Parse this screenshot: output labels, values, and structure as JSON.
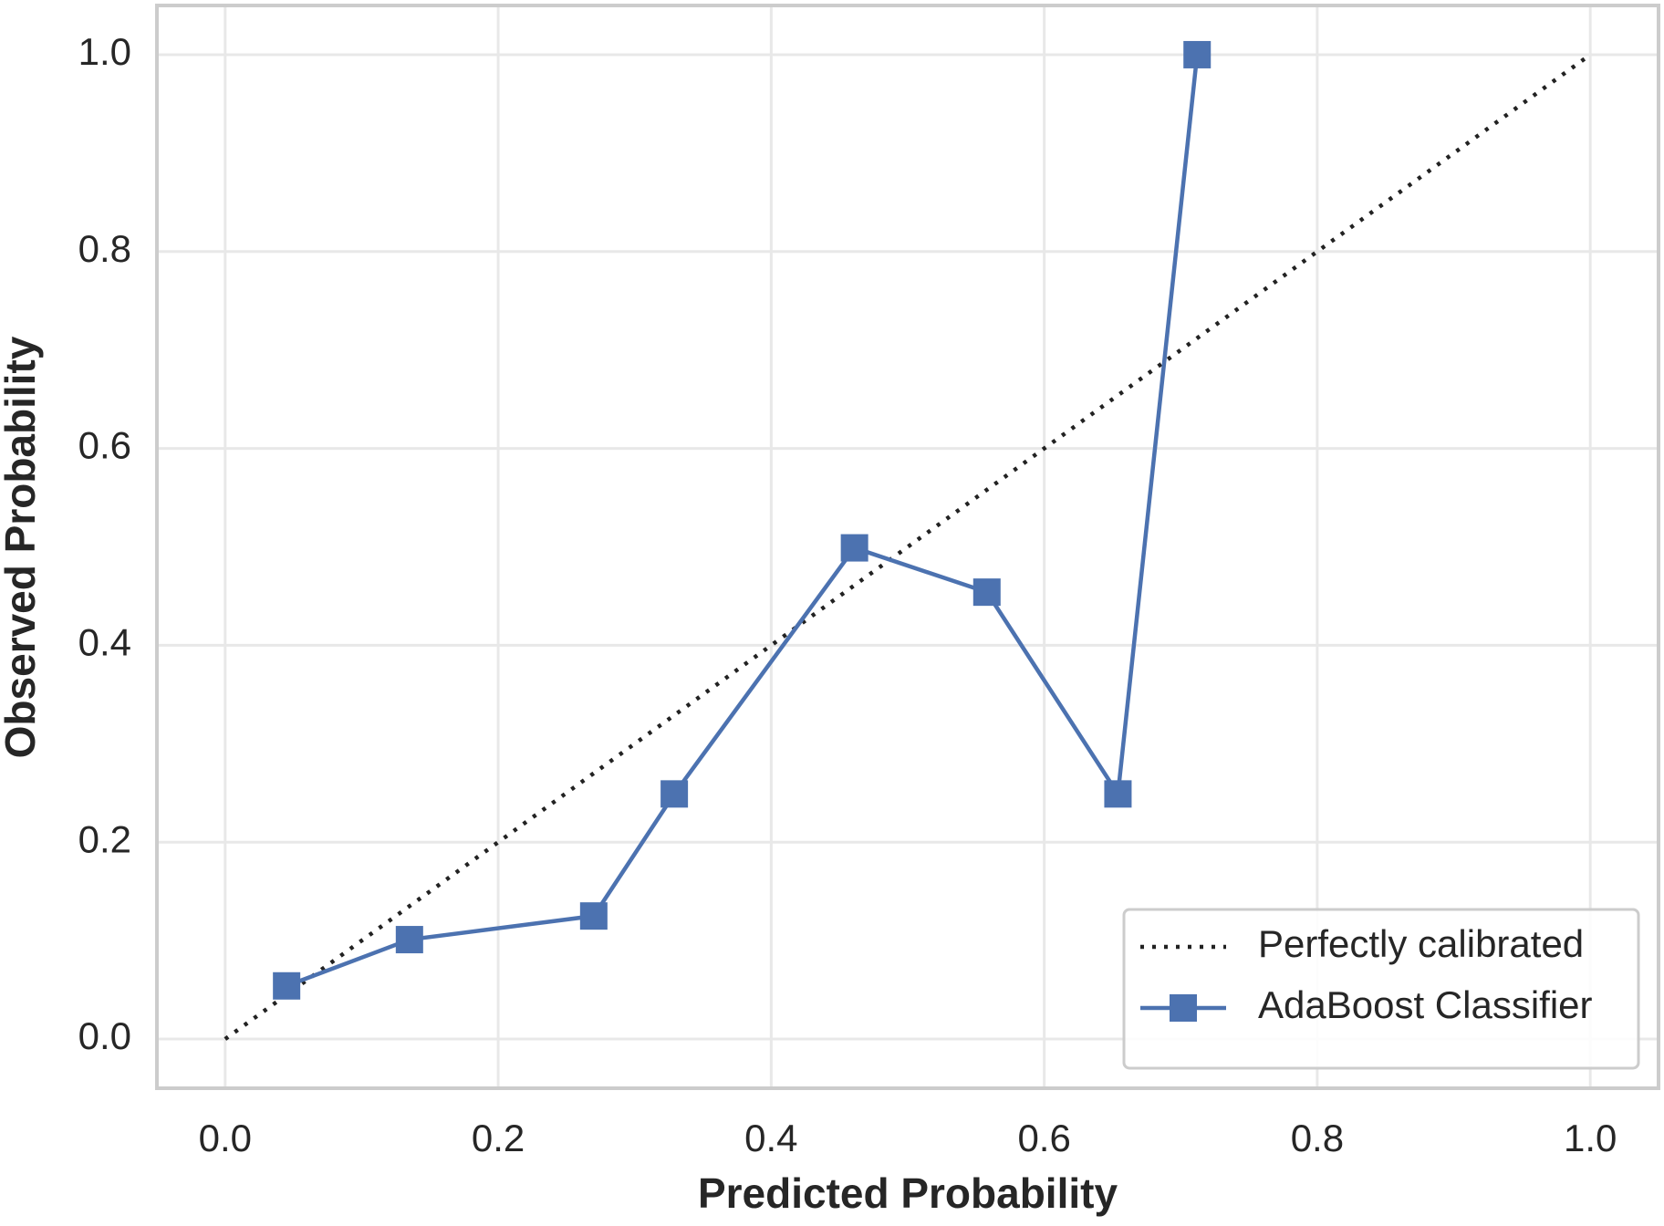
{
  "chart_data": {
    "type": "line",
    "xlabel": "Predicted Probability",
    "ylabel": "Observed Probability",
    "xlim": [
      -0.05,
      1.05
    ],
    "ylim": [
      -0.05,
      1.05
    ],
    "xticks": [
      {
        "value": 0,
        "label": "0.0"
      },
      0.2,
      0.4,
      0.6,
      0.8,
      {
        "value": 1,
        "label": "1.0"
      }
    ],
    "yticks": [
      {
        "value": 0,
        "label": "0.0"
      },
      0.2,
      0.4,
      0.6,
      0.8,
      {
        "value": 1,
        "label": "1.0"
      }
    ],
    "grid": true,
    "legend": "lower right",
    "series": [
      {
        "name": "Perfectly calibrated",
        "color": "#222222",
        "linestyle": "dotted",
        "marker": "none",
        "x": [
          0,
          1
        ],
        "values": [
          0,
          1
        ]
      },
      {
        "name": "AdaBoost Classifier",
        "color": "#4c72b0",
        "linestyle": "solid",
        "marker": "square",
        "x": [
          0.045,
          0.135,
          0.27,
          0.329,
          0.461,
          0.558,
          0.654,
          0.712
        ],
        "values": [
          0.054,
          0.101,
          0.125,
          0.249,
          0.499,
          0.454,
          0.249,
          1.0
        ]
      }
    ]
  }
}
